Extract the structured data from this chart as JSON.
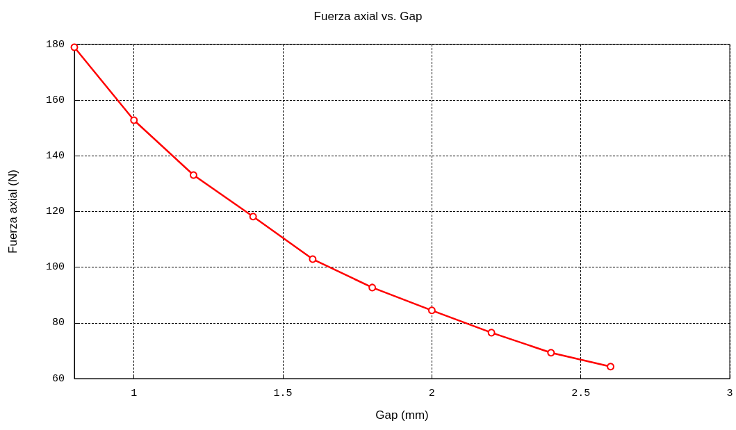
{
  "chart_data": {
    "type": "line",
    "title": "Fuerza axial vs. Gap",
    "xlabel": "Gap (mm)",
    "ylabel": "Fuerza axial (N)",
    "x": [
      0.8,
      1.0,
      1.2,
      1.4,
      1.6,
      1.8,
      2.0,
      2.2,
      2.4,
      2.6
    ],
    "series": [
      {
        "color": "#ff0000",
        "values": [
          179,
          152.8,
          133.1,
          118.2,
          102.9,
          92.7,
          84.5,
          76.5,
          69.3,
          64.3
        ]
      }
    ],
    "xlim": [
      0.8,
      3
    ],
    "xticks": [
      1,
      1.5,
      2,
      2.5,
      3
    ],
    "ylim": [
      60,
      180
    ],
    "yticks": [
      60,
      80,
      100,
      120,
      140,
      160,
      180
    ],
    "grid": true,
    "marker": "circle",
    "line_style": "solid"
  }
}
